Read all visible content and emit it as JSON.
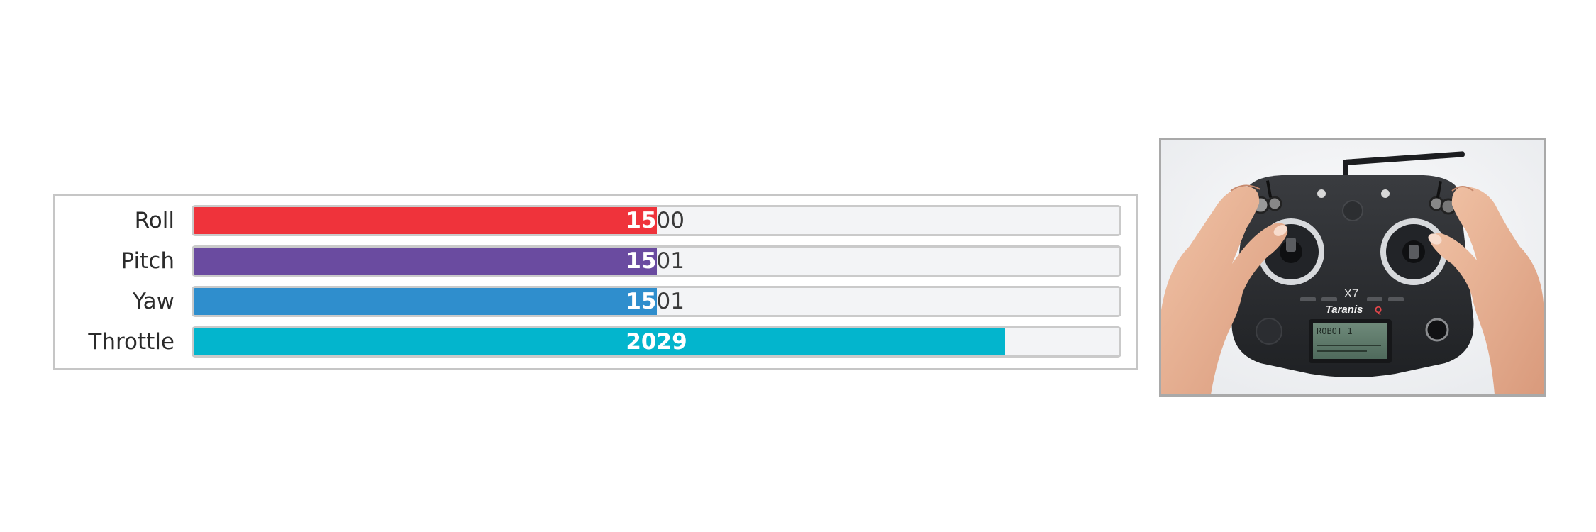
{
  "channels": [
    {
      "name": "Roll",
      "value": "1500",
      "fill_fraction": 0.5,
      "color": "#ef333b"
    },
    {
      "name": "Pitch",
      "value": "1501",
      "fill_fraction": 0.5,
      "color": "#6a4ba0"
    },
    {
      "name": "Yaw",
      "value": "1501",
      "fill_fraction": 0.5,
      "color": "#2f8ecd"
    },
    {
      "name": "Throttle",
      "value": "2029",
      "fill_fraction": 0.877,
      "color": "#03b5cd"
    }
  ],
  "photo": {
    "subject": "transmitter-held-in-hands",
    "model_text": "X7",
    "brand_text": "Taranis",
    "brand_suffix": "Q",
    "screen_text": "ROBOT 1"
  }
}
